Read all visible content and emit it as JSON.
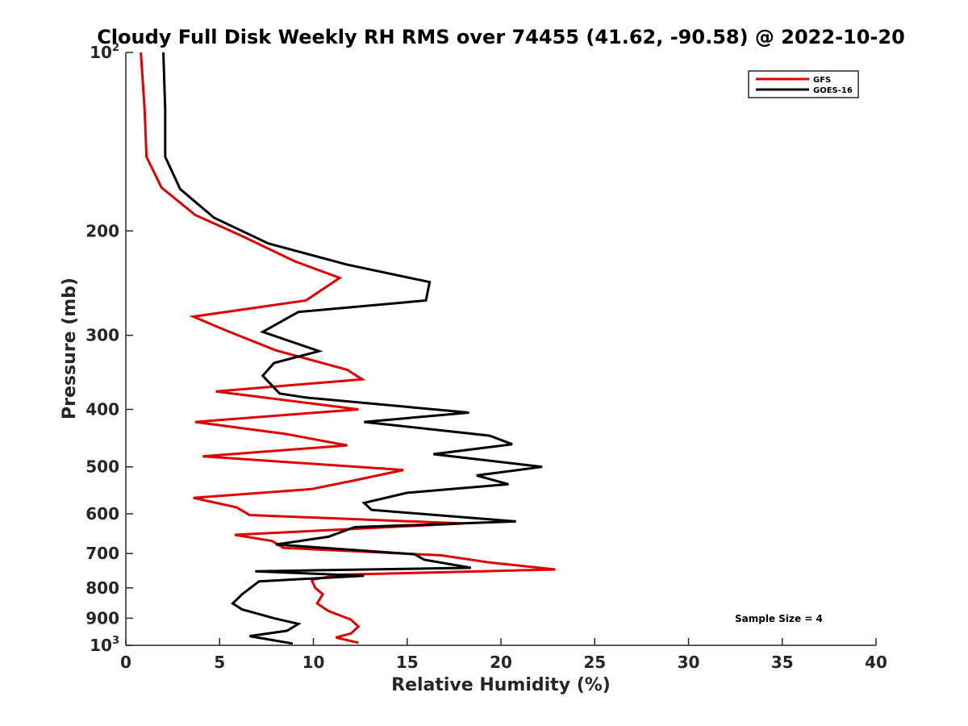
{
  "chart_data": {
    "type": "line",
    "title": "Cloudy Full Disk Weekly RH RMS over 74455 (41.62, -90.58) @ 2022-10-20",
    "xlabel": "Relative Humidity (%)",
    "ylabel": "Pressure (mb)",
    "xlim": [
      0,
      40
    ],
    "ylim": [
      100,
      1000
    ],
    "y_scale": "log",
    "y_reversed": true,
    "grid": false,
    "legend_position": "top-right",
    "x_ticks": [
      0,
      5,
      10,
      15,
      20,
      25,
      30,
      35,
      40
    ],
    "x_tick_labels": [
      "0",
      "5",
      "10",
      "15",
      "20",
      "25",
      "30",
      "35",
      "40"
    ],
    "y_ticks": [
      {
        "value": 100,
        "base": "10",
        "exp": "2"
      },
      {
        "value": 200,
        "label": "200"
      },
      {
        "value": 300,
        "label": "300"
      },
      {
        "value": 400,
        "label": "400"
      },
      {
        "value": 500,
        "label": "500"
      },
      {
        "value": 600,
        "label": "600"
      },
      {
        "value": 700,
        "label": "700"
      },
      {
        "value": 800,
        "label": "800"
      },
      {
        "value": 900,
        "label": "900"
      },
      {
        "value": 1000,
        "base": "10",
        "exp": "3"
      }
    ],
    "annotation": "Sample Size = 4",
    "series": [
      {
        "name": "GFS",
        "color": "#e00000",
        "points": [
          [
            0.8,
            100
          ],
          [
            1.0,
            125
          ],
          [
            1.1,
            150
          ],
          [
            1.9,
            169
          ],
          [
            3.7,
            188
          ],
          [
            6.2,
            204
          ],
          [
            9.0,
            225
          ],
          [
            11.4,
            240
          ],
          [
            9.6,
            262
          ],
          [
            3.6,
            279
          ],
          [
            5.4,
            295
          ],
          [
            8.0,
            318
          ],
          [
            11.8,
            343
          ],
          [
            12.6,
            356
          ],
          [
            4.8,
            373
          ],
          [
            12.4,
            400
          ],
          [
            3.7,
            420
          ],
          [
            8.5,
            440
          ],
          [
            11.8,
            460
          ],
          [
            4.1,
            480
          ],
          [
            14.8,
            506
          ],
          [
            12.2,
            527
          ],
          [
            9.9,
            545
          ],
          [
            3.6,
            564
          ],
          [
            5.9,
            585
          ],
          [
            6.6,
            603
          ],
          [
            18.0,
            623
          ],
          [
            5.8,
            651
          ],
          [
            7.8,
            667
          ],
          [
            8.4,
            685
          ],
          [
            16.8,
            705
          ],
          [
            19.4,
            725
          ],
          [
            22.9,
            745
          ],
          [
            11.5,
            760
          ],
          [
            9.9,
            775
          ],
          [
            10.1,
            800
          ],
          [
            10.5,
            820
          ],
          [
            10.2,
            850
          ],
          [
            10.8,
            875
          ],
          [
            12.0,
            905
          ],
          [
            12.4,
            930
          ],
          [
            12.0,
            955
          ],
          [
            11.2,
            970
          ],
          [
            12.4,
            990
          ]
        ]
      },
      {
        "name": "GOES-16",
        "color": "#000000",
        "points": [
          [
            2.0,
            100
          ],
          [
            2.1,
            125
          ],
          [
            2.1,
            150
          ],
          [
            2.9,
            170
          ],
          [
            4.7,
            190
          ],
          [
            7.6,
            210
          ],
          [
            11.8,
            228
          ],
          [
            16.2,
            244
          ],
          [
            16.0,
            262
          ],
          [
            9.2,
            274
          ],
          [
            7.3,
            296
          ],
          [
            10.3,
            319
          ],
          [
            7.9,
            334
          ],
          [
            7.3,
            351
          ],
          [
            8.2,
            376
          ],
          [
            9.6,
            382
          ],
          [
            18.3,
            405
          ],
          [
            12.7,
            420
          ],
          [
            19.4,
            443
          ],
          [
            20.6,
            458
          ],
          [
            16.4,
            476
          ],
          [
            22.2,
            500
          ],
          [
            18.7,
            517
          ],
          [
            20.4,
            535
          ],
          [
            15.0,
            553
          ],
          [
            12.7,
            575
          ],
          [
            13.1,
            591
          ],
          [
            20.8,
            618
          ],
          [
            12.2,
            632
          ],
          [
            10.8,
            656
          ],
          [
            8.0,
            676
          ],
          [
            15.4,
            702
          ],
          [
            15.9,
            717
          ],
          [
            18.4,
            740
          ],
          [
            6.9,
            750
          ],
          [
            12.7,
            763
          ],
          [
            7.1,
            780
          ],
          [
            6.2,
            820
          ],
          [
            5.7,
            850
          ],
          [
            6.2,
            870
          ],
          [
            7.9,
            900
          ],
          [
            9.2,
            920
          ],
          [
            8.6,
            945
          ],
          [
            6.6,
            965
          ],
          [
            8.9,
            993
          ]
        ]
      }
    ]
  }
}
